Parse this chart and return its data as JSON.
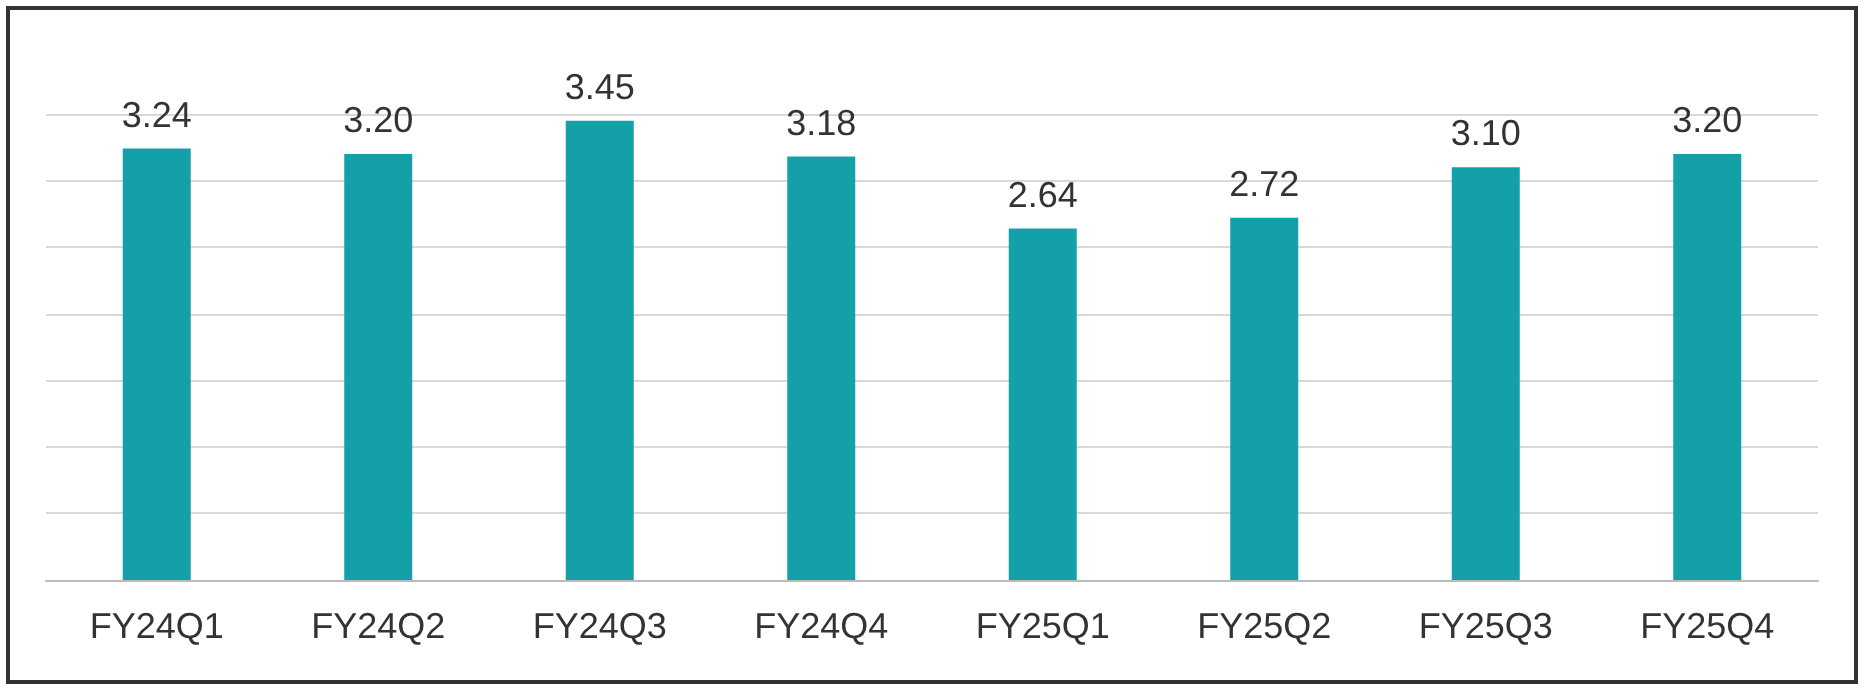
{
  "chart_data": {
    "type": "bar",
    "categories": [
      "FY24Q1",
      "FY24Q2",
      "FY24Q3",
      "FY24Q4",
      "FY25Q1",
      "FY25Q2",
      "FY25Q3",
      "FY25Q4"
    ],
    "values": [
      3.24,
      3.2,
      3.45,
      3.18,
      2.64,
      2.72,
      3.1,
      3.2
    ],
    "color": "#14a0a8",
    "ylim": [
      0,
      3.5
    ],
    "yticks": [
      0,
      0.5,
      1,
      1.5,
      2,
      2.5,
      3,
      3.5
    ],
    "value_labels": [
      "3.24",
      "3.20",
      "3.45",
      "3.18",
      "2.64",
      "2.72",
      "3.10",
      "3.20"
    ],
    "tick_labels": "x",
    "grid": "y"
  }
}
